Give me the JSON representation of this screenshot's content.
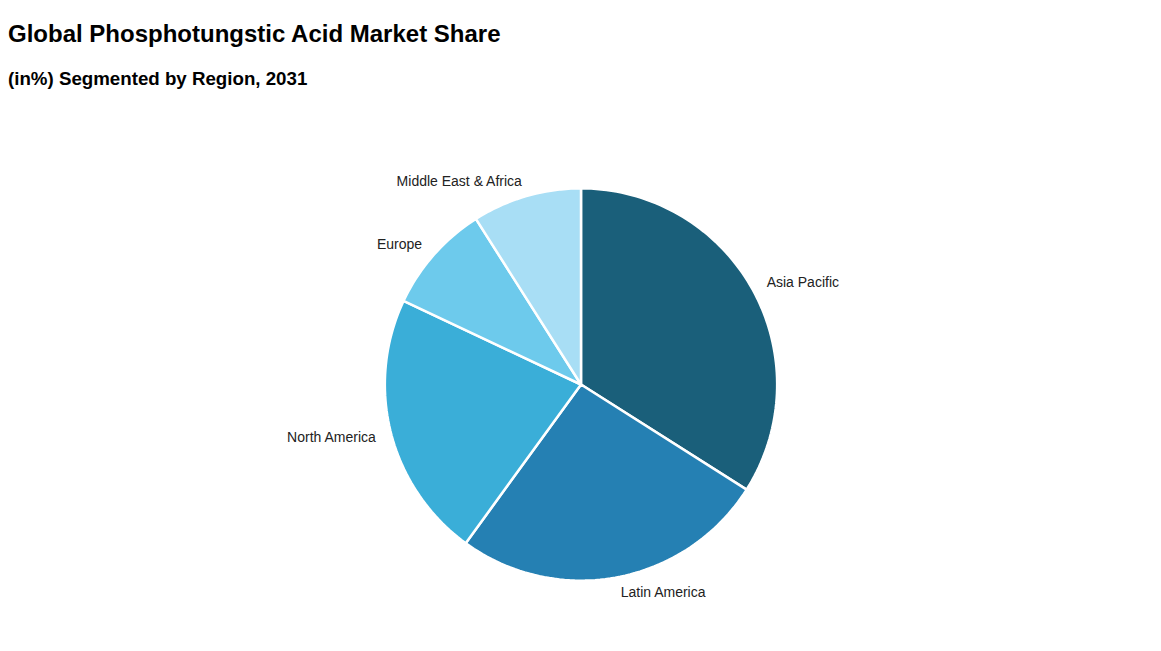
{
  "chart_data": {
    "type": "pie",
    "title": "Global Phosphotungstic Acid Market Share",
    "subtitle": "(in%) Segmented by Region, 2031",
    "categories": [
      "Asia Pacific",
      "Latin America",
      "North America",
      "Europe",
      "Middle East & Africa"
    ],
    "values": [
      34,
      26,
      22,
      9,
      9
    ],
    "colors": [
      "#1a5f7a",
      "#2580b3",
      "#3aaed8",
      "#6dcaec",
      "#a8def5"
    ]
  }
}
